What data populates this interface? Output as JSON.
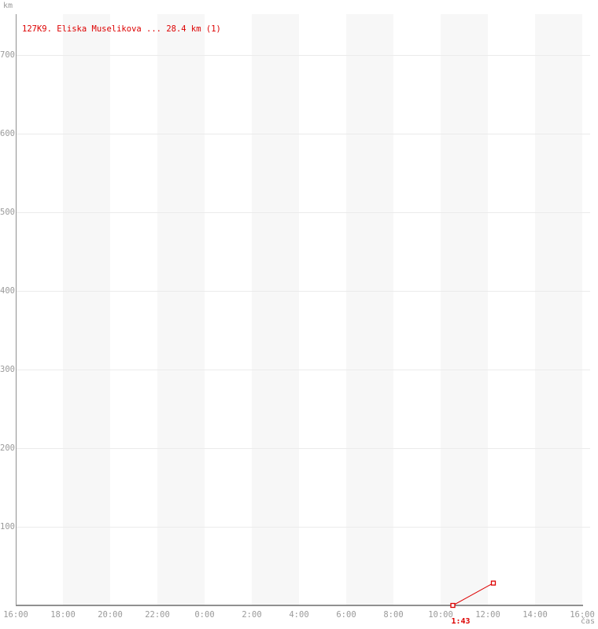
{
  "chart_data": {
    "type": "line",
    "title": "",
    "legend_position": "top-left inside plot",
    "grid": true,
    "background_bands": "alternating 2-hour vertical stripes starting at 18:00",
    "x_axis": {
      "label": "čas",
      "start_hour": 16,
      "hours_span": 24,
      "tick_interval_hours": 2,
      "tick_labels": [
        "16:00",
        "18:00",
        "20:00",
        "22:00",
        "0:00",
        "2:00",
        "4:00",
        "6:00",
        "8:00",
        "10:00",
        "12:00",
        "14:00",
        "16:00"
      ]
    },
    "y_axis": {
      "label": "km",
      "min": 0,
      "max": 752,
      "tick_interval": 100,
      "tick_labels": [
        "100",
        "200",
        "300",
        "400",
        "500",
        "600",
        "700"
      ]
    },
    "series": [
      {
        "name": "127K9. Eliska Muselikova",
        "legend_label": "127K9. Eliska Muselikova ... 28.4 km (1)",
        "distance_km": 28.4,
        "duration_label": "1:43",
        "marker": "open-square",
        "points": [
          {
            "time": "10:31",
            "km": 0
          },
          {
            "time": "12:14",
            "km": 28.4
          }
        ]
      }
    ]
  },
  "colors": {
    "series": "#dd0000",
    "band": "#f7f7f7",
    "gridline": "#ebebeb",
    "axis": "#909090",
    "tick_text": "#9a9a9a",
    "background": "#ffffff"
  }
}
